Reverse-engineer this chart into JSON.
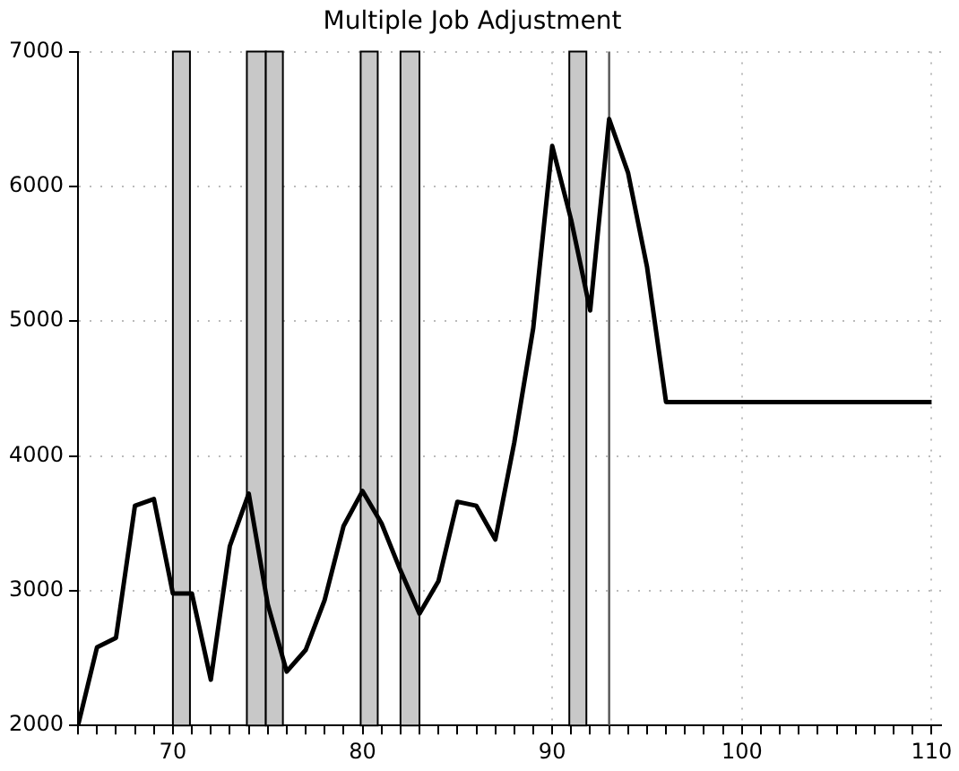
{
  "chart_data": {
    "type": "line",
    "title": "Multiple Job Adjustment",
    "x": [
      65,
      66,
      67,
      68,
      69,
      70,
      71,
      72,
      73,
      74,
      75,
      76,
      77,
      78,
      79,
      80,
      81,
      82,
      83,
      84,
      85,
      86,
      87,
      88,
      89,
      90,
      91,
      92,
      93,
      94,
      95,
      96,
      110
    ],
    "series": [
      {
        "color": "#000000",
        "values": [
          2000,
          2580,
          2650,
          3630,
          3680,
          2980,
          2980,
          2340,
          3330,
          3720,
          2900,
          2400,
          2560,
          2930,
          3480,
          3740,
          3500,
          3150,
          2830,
          3070,
          3660,
          3630,
          3380,
          4100,
          4950,
          6300,
          5750,
          5080,
          6500,
          6100,
          5400,
          4400,
          4400
        ]
      }
    ],
    "xlim": [
      65,
      110.5
    ],
    "xticks": [
      {
        "value": 65,
        "label": null
      },
      {
        "value": 66,
        "label": null
      },
      {
        "value": 67,
        "label": null
      },
      {
        "value": 68,
        "label": null
      },
      {
        "value": 69,
        "label": null
      },
      70,
      {
        "value": 71,
        "label": null
      },
      {
        "value": 72,
        "label": null
      },
      {
        "value": 73,
        "label": null
      },
      {
        "value": 74,
        "label": null
      },
      {
        "value": 75,
        "label": null
      },
      {
        "value": 76,
        "label": null
      },
      {
        "value": 77,
        "label": null
      },
      {
        "value": 78,
        "label": null
      },
      {
        "value": 79,
        "label": null
      },
      80,
      {
        "value": 81,
        "label": null
      },
      {
        "value": 82,
        "label": null
      },
      {
        "value": 83,
        "label": null
      },
      {
        "value": 84,
        "label": null
      },
      {
        "value": 85,
        "label": null
      },
      {
        "value": 86,
        "label": null
      },
      {
        "value": 87,
        "label": null
      },
      {
        "value": 88,
        "label": null
      },
      {
        "value": 89,
        "label": null
      },
      90,
      {
        "value": 91,
        "label": null
      },
      {
        "value": 92,
        "label": null
      },
      {
        "value": 93,
        "label": null
      },
      {
        "value": 94,
        "label": null
      },
      {
        "value": 95,
        "label": null
      },
      {
        "value": 96,
        "label": null
      },
      {
        "value": 97,
        "label": null
      },
      {
        "value": 98,
        "label": null
      },
      {
        "value": 99,
        "label": null
      },
      100,
      {
        "value": 101,
        "label": null
      },
      {
        "value": 102,
        "label": null
      },
      {
        "value": 103,
        "label": null
      },
      {
        "value": 104,
        "label": null
      },
      {
        "value": 105,
        "label": null
      },
      {
        "value": 106,
        "label": null
      },
      {
        "value": 107,
        "label": null
      },
      {
        "value": 108,
        "label": null
      },
      {
        "value": 109,
        "label": null
      },
      110
    ],
    "ylim": [
      2000,
      7000
    ],
    "yticks": [
      2000,
      3000,
      4000,
      5000,
      6000,
      7000
    ],
    "grid": true,
    "marker": "none",
    "line_style": "solid",
    "bands": [
      {
        "axis": "x",
        "from": 70,
        "to": 70.9,
        "color": "#c8c8c8"
      },
      {
        "axis": "x",
        "from": 73.9,
        "to": 74.9,
        "color": "#c8c8c8"
      },
      {
        "axis": "x",
        "from": 74.9,
        "to": 75.8,
        "color": "#c8c8c8"
      },
      {
        "axis": "x",
        "from": 79.9,
        "to": 80.8,
        "color": "#c8c8c8"
      },
      {
        "axis": "x",
        "from": 82,
        "to": 83,
        "color": "#c8c8c8"
      },
      {
        "axis": "x",
        "from": 90.9,
        "to": 91.8,
        "color": "#c8c8c8"
      }
    ],
    "ref_lines": [
      {
        "axis": "x",
        "value": 93,
        "color": "#555555"
      }
    ]
  }
}
